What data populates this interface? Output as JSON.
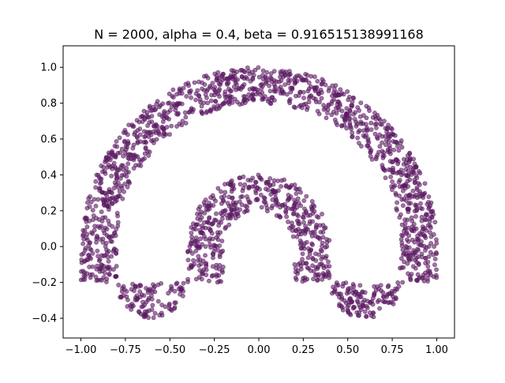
{
  "chart_data": {
    "type": "scatter",
    "title": "N = 2000, alpha = 0.4, beta = 0.916515138991168",
    "xlabel": "",
    "ylabel": "",
    "xlim": [
      -1.1,
      1.1
    ],
    "ylim": [
      -0.51,
      1.12
    ],
    "x_ticks": [
      -1.0,
      -0.75,
      -0.5,
      -0.25,
      0.0,
      0.25,
      0.5,
      0.75,
      1.0
    ],
    "x_tick_labels": [
      "−1.00",
      "−0.75",
      "−0.50",
      "−0.25",
      "0.00",
      "0.25",
      "0.50",
      "0.75",
      "1.00"
    ],
    "y_ticks": [
      -0.4,
      -0.2,
      0.0,
      0.2,
      0.4,
      0.6,
      0.8,
      1.0
    ],
    "y_tick_labels": [
      "−0.4",
      "−0.2",
      "0.0",
      "0.2",
      "0.4",
      "0.6",
      "0.8",
      "1.0"
    ],
    "grid": false,
    "legend": "none",
    "point_color": "#5b1a63",
    "point_alpha": 0.6,
    "point_count": 2000,
    "shape": {
      "outer_arc": {
        "center": [
          0.0,
          0.0
        ],
        "radius_min": 0.8,
        "radius_max": 1.0,
        "angle_deg": [
          -8,
          188
        ]
      },
      "left_cap": {
        "center": [
          -0.6,
          -0.2
        ],
        "radius_min": 0.0,
        "radius_max": 0.2,
        "angle_deg": [
          180,
          360
        ]
      },
      "right_cap": {
        "center": [
          0.6,
          -0.2
        ],
        "radius_min": 0.0,
        "radius_max": 0.2,
        "angle_deg": [
          180,
          360
        ]
      },
      "inner_left_bump": {
        "center": [
          -0.2,
          0.0
        ],
        "radius_min": 0.0,
        "radius_max": 0.2
      },
      "inner_top_arc": {
        "center": [
          0.0,
          0.0
        ],
        "radius_min": 0.2,
        "radius_max": 0.4,
        "angle_deg": [
          0,
          180
        ]
      },
      "inner_right_bump": {
        "center": [
          0.2,
          0.0
        ],
        "radius_min": 0.0,
        "radius_max": 0.2
      }
    }
  }
}
